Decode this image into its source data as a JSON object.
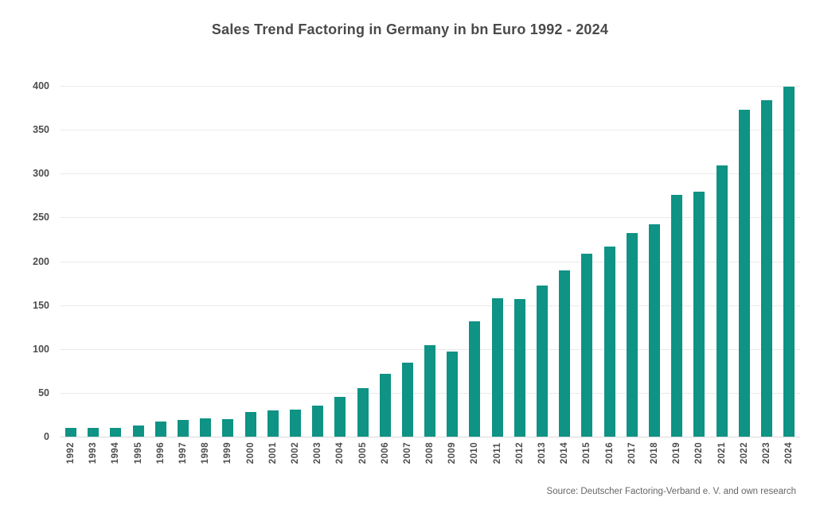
{
  "chart_data": {
    "type": "bar",
    "title": "Sales Trend Factoring in Germany in bn Euro 1992 - 2024",
    "categories": [
      "1992",
      "1993",
      "1994",
      "1995",
      "1996",
      "1997",
      "1998",
      "1999",
      "2000",
      "2001",
      "2002",
      "2003",
      "2004",
      "2005",
      "2006",
      "2007",
      "2008",
      "2009",
      "2010",
      "2011",
      "2012",
      "2013",
      "2014",
      "2015",
      "2016",
      "2017",
      "2018",
      "2019",
      "2020",
      "2021",
      "2022",
      "2023",
      "2024"
    ],
    "values": [
      10,
      10,
      10,
      13,
      17,
      19,
      21,
      20,
      28,
      30,
      31,
      35,
      45,
      55,
      72,
      84,
      104,
      97,
      132,
      158,
      157,
      172,
      190,
      209,
      217,
      232,
      242,
      276,
      279,
      309,
      373,
      384,
      399
    ],
    "xlabel": "",
    "ylabel": "",
    "ylim": [
      0,
      400
    ],
    "yticks": [
      0,
      50,
      100,
      150,
      200,
      250,
      300,
      350,
      400
    ],
    "grid": "horizontal",
    "legend_position": "none",
    "source_note": "Source: Deutscher Factoring-Verband e. V. and own research"
  },
  "colors": {
    "background": "#ffffff",
    "bar": "#0e9384",
    "title_text": "#4a4a4a",
    "axis_text": "#4d4d4d",
    "gridline": "#eaeaea",
    "axis_line": "#d8d8d8",
    "source_text": "#666666"
  }
}
